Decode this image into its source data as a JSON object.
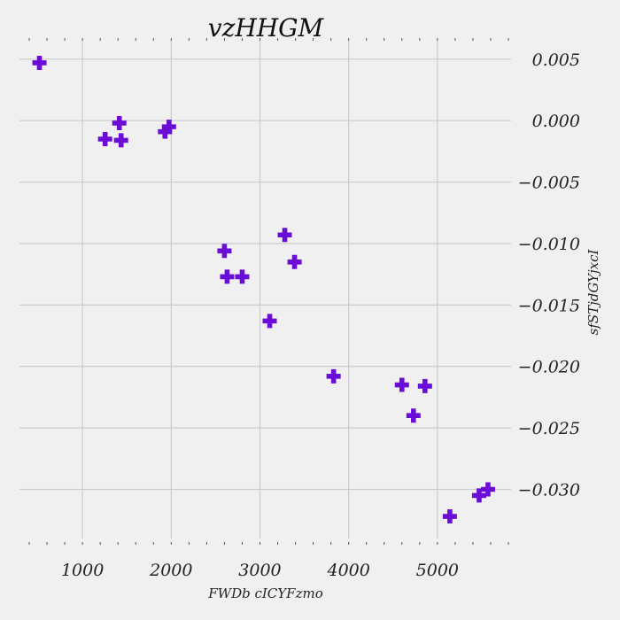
{
  "chart_data": {
    "type": "scatter",
    "title": "vzHHGM",
    "xlabel": "FWDb cICYFzmo",
    "ylabel": "sfSTjdGYjxcI",
    "xlim": [
      290,
      5830
    ],
    "ylim": [
      -0.034,
      0.0065
    ],
    "x_ticks": [
      1000,
      2000,
      3000,
      4000,
      5000
    ],
    "x_tick_labels": [
      "1000",
      "2000",
      "3000",
      "4000",
      "5000"
    ],
    "y_ticks": [
      0.005,
      0.0,
      -0.005,
      -0.01,
      -0.015,
      -0.02,
      -0.025,
      -0.03
    ],
    "y_tick_labels": [
      "0.005",
      "0.000",
      "−0.005",
      "−0.010",
      "−0.015",
      "−0.020",
      "−0.025",
      "−0.030"
    ],
    "y_axis_side": "right",
    "grid": true,
    "marker": "plus",
    "color": "#6a0dd6",
    "points": [
      {
        "x": 515,
        "y": 0.0047
      },
      {
        "x": 1255,
        "y": -0.0015
      },
      {
        "x": 1415,
        "y": -0.0002
      },
      {
        "x": 1435,
        "y": -0.0016
      },
      {
        "x": 1930,
        "y": -0.0009
      },
      {
        "x": 1975,
        "y": -0.0005
      },
      {
        "x": 2600,
        "y": -0.0106
      },
      {
        "x": 2630,
        "y": -0.0127
      },
      {
        "x": 2800,
        "y": -0.0127
      },
      {
        "x": 3110,
        "y": -0.0163
      },
      {
        "x": 3280,
        "y": -0.0093
      },
      {
        "x": 3390,
        "y": -0.0115
      },
      {
        "x": 3830,
        "y": -0.0208
      },
      {
        "x": 4600,
        "y": -0.0215
      },
      {
        "x": 4730,
        "y": -0.024
      },
      {
        "x": 4860,
        "y": -0.0216
      },
      {
        "x": 5140,
        "y": -0.0322
      },
      {
        "x": 5470,
        "y": -0.0305
      },
      {
        "x": 5570,
        "y": -0.03
      }
    ]
  }
}
